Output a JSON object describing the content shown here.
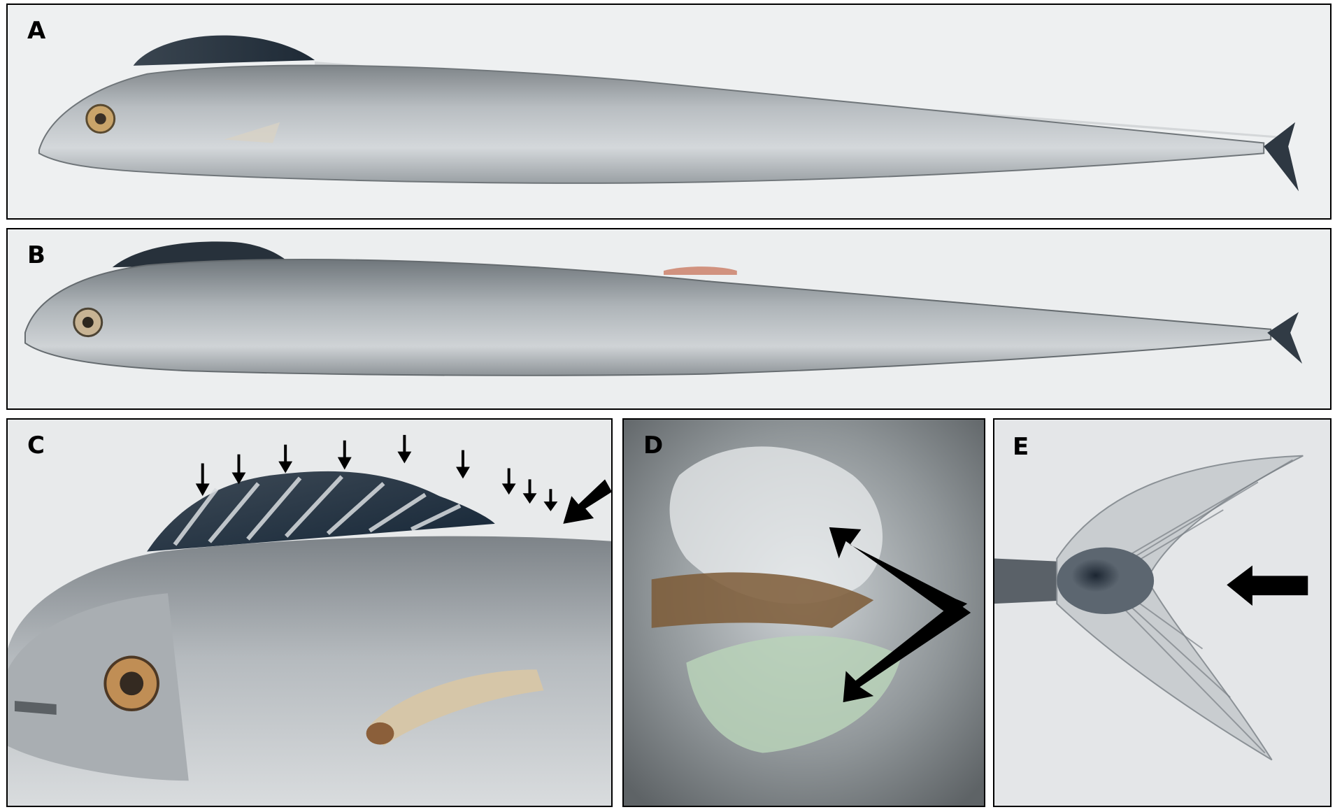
{
  "panels": {
    "a": {
      "label": "A",
      "subject": "full-body-lateral-view"
    },
    "b": {
      "label": "B",
      "subject": "full-body-lateral-view"
    },
    "c": {
      "label": "C",
      "subject": "head-and-dorsal-fin-closeup"
    },
    "d": {
      "label": "D",
      "subject": "ventral-fin-closeup"
    },
    "e": {
      "label": "E",
      "subject": "caudal-fin-closeup"
    }
  },
  "colors": {
    "background": "#ffffff",
    "border": "#000000",
    "fish_silver": "#b7bcc0",
    "fin_dark": "#2b3540",
    "arrow": "#000000"
  },
  "icons": [
    "arrow-down-icon",
    "arrow-diagonal-icon",
    "arrow-left-icon"
  ]
}
